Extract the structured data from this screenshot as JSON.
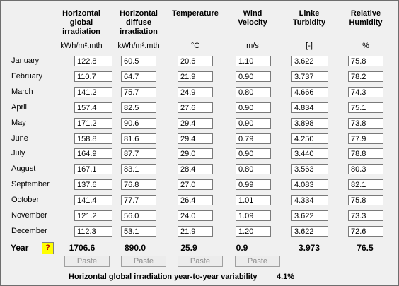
{
  "columns": [
    {
      "title": "Horizontal global irradiation",
      "unit": "kWh/m².mth"
    },
    {
      "title": "Horizontal diffuse irradiation",
      "unit": "kWh/m².mth"
    },
    {
      "title": "Temperature",
      "unit": "°C"
    },
    {
      "title": "Wind Velocity",
      "unit": "m/s"
    },
    {
      "title": "Linke Turbidity",
      "unit": "[-]"
    },
    {
      "title": "Relative Humidity",
      "unit": "%"
    }
  ],
  "rows": [
    {
      "month": "January",
      "values": [
        "122.8",
        "60.5",
        "20.6",
        "1.10",
        "3.622",
        "75.8"
      ]
    },
    {
      "month": "February",
      "values": [
        "110.7",
        "64.7",
        "21.9",
        "0.90",
        "3.737",
        "78.2"
      ]
    },
    {
      "month": "March",
      "values": [
        "141.2",
        "75.7",
        "24.9",
        "0.80",
        "4.666",
        "74.3"
      ]
    },
    {
      "month": "April",
      "values": [
        "157.4",
        "82.5",
        "27.6",
        "0.90",
        "4.834",
        "75.1"
      ]
    },
    {
      "month": "May",
      "values": [
        "171.2",
        "90.6",
        "29.4",
        "0.90",
        "3.898",
        "73.8"
      ]
    },
    {
      "month": "June",
      "values": [
        "158.8",
        "81.6",
        "29.4",
        "0.79",
        "4.250",
        "77.9"
      ]
    },
    {
      "month": "July",
      "values": [
        "164.9",
        "87.7",
        "29.0",
        "0.90",
        "3.440",
        "78.8"
      ]
    },
    {
      "month": "August",
      "values": [
        "167.1",
        "83.1",
        "28.4",
        "0.80",
        "3.563",
        "80.3"
      ]
    },
    {
      "month": "September",
      "values": [
        "137.6",
        "76.8",
        "27.0",
        "0.99",
        "4.083",
        "82.1"
      ]
    },
    {
      "month": "October",
      "values": [
        "141.4",
        "77.7",
        "26.4",
        "1.01",
        "4.334",
        "75.8"
      ]
    },
    {
      "month": "November",
      "values": [
        "121.2",
        "56.0",
        "24.0",
        "1.09",
        "3.622",
        "73.3"
      ]
    },
    {
      "month": "December",
      "values": [
        "112.3",
        "53.1",
        "21.9",
        "1.20",
        "3.622",
        "72.6"
      ]
    }
  ],
  "year": {
    "label": "Year",
    "help": "?",
    "values": [
      "1706.6",
      "890.0",
      "25.9",
      "0.9",
      "3.973",
      "76.5"
    ]
  },
  "paste_buttons": [
    "Paste",
    "Paste",
    "Paste",
    "Paste"
  ],
  "footer": {
    "label": "Horizontal global irradiation year-to-year variability",
    "value": "4.1%"
  }
}
